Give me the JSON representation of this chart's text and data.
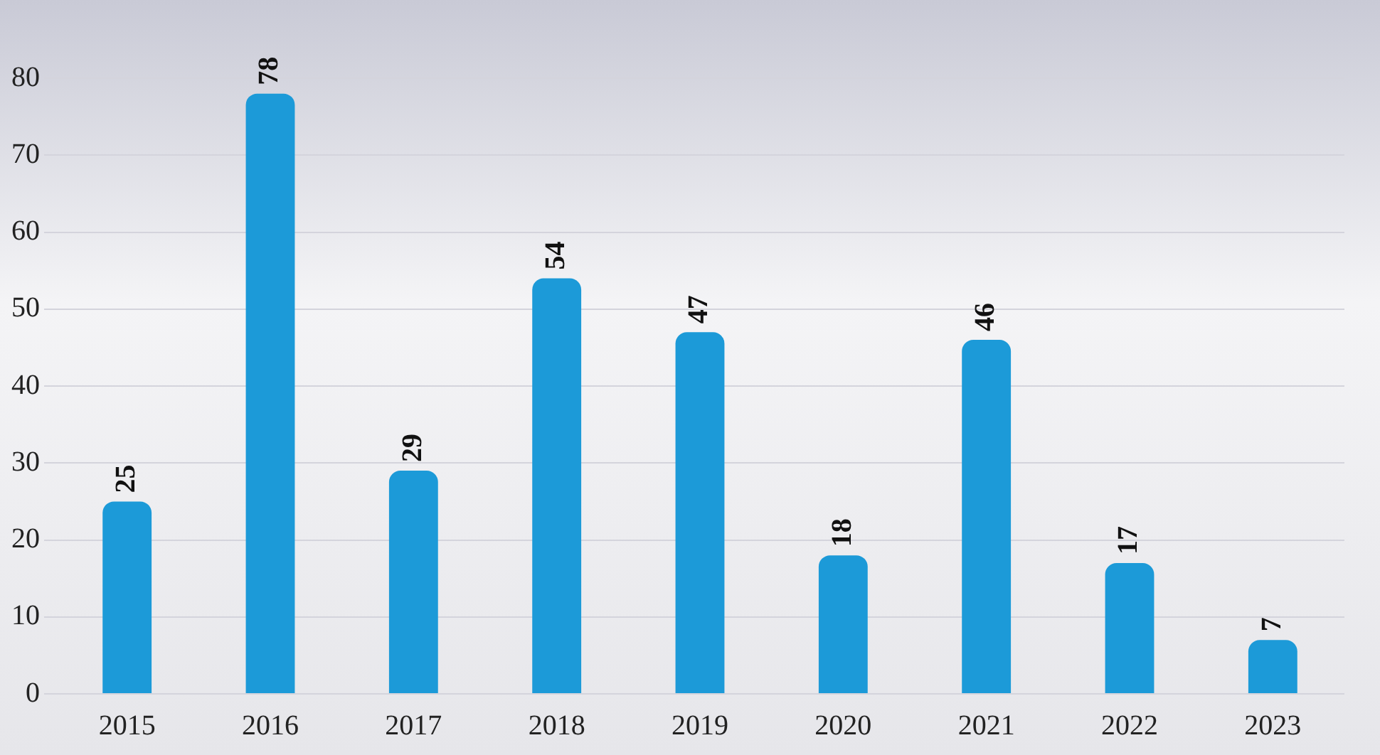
{
  "chart_data": {
    "type": "bar",
    "categories": [
      "2015",
      "2016",
      "2017",
      "2018",
      "2019",
      "2020",
      "2021",
      "2022",
      "2023"
    ],
    "values": [
      25,
      78,
      29,
      54,
      47,
      18,
      46,
      17,
      7
    ],
    "color": "#1c9ad8",
    "ylim": [
      0,
      80
    ],
    "yticks": [
      0,
      10,
      20,
      30,
      40,
      50,
      60,
      70,
      80
    ],
    "grid": "y",
    "data_labels": true
  }
}
